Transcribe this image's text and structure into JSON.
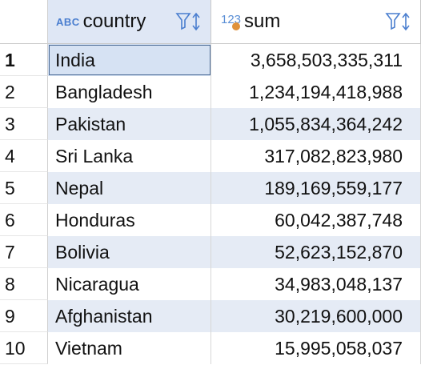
{
  "columns": [
    {
      "type_badge": "ABC",
      "label": "country"
    },
    {
      "type_badge": "123",
      "label": "sum"
    }
  ],
  "rows": [
    {
      "n": "1",
      "country": "India",
      "sum": "3,658,503,335,311"
    },
    {
      "n": "2",
      "country": "Bangladesh",
      "sum": "1,234,194,418,988"
    },
    {
      "n": "3",
      "country": "Pakistan",
      "sum": "1,055,834,364,242"
    },
    {
      "n": "4",
      "country": "Sri Lanka",
      "sum": "317,082,823,980"
    },
    {
      "n": "5",
      "country": "Nepal",
      "sum": "189,169,559,177"
    },
    {
      "n": "6",
      "country": "Honduras",
      "sum": "60,042,387,748"
    },
    {
      "n": "7",
      "country": "Bolivia",
      "sum": "52,623,152,870"
    },
    {
      "n": "8",
      "country": "Nicaragua",
      "sum": "34,983,048,137"
    },
    {
      "n": "9",
      "country": "Afghanistan",
      "sum": "30,219,600,000"
    },
    {
      "n": "10",
      "country": "Vietnam",
      "sum": "15,995,058,037"
    }
  ],
  "selected_row": "1",
  "colors": {
    "accent": "#4a7ecf",
    "header_selected": "#dfe7f5",
    "row_alt": "#e5ebf5",
    "number_type_dot": "#e0913a"
  },
  "icons": [
    "filter-icon",
    "sort-icon",
    "string-type-icon",
    "number-type-icon"
  ]
}
